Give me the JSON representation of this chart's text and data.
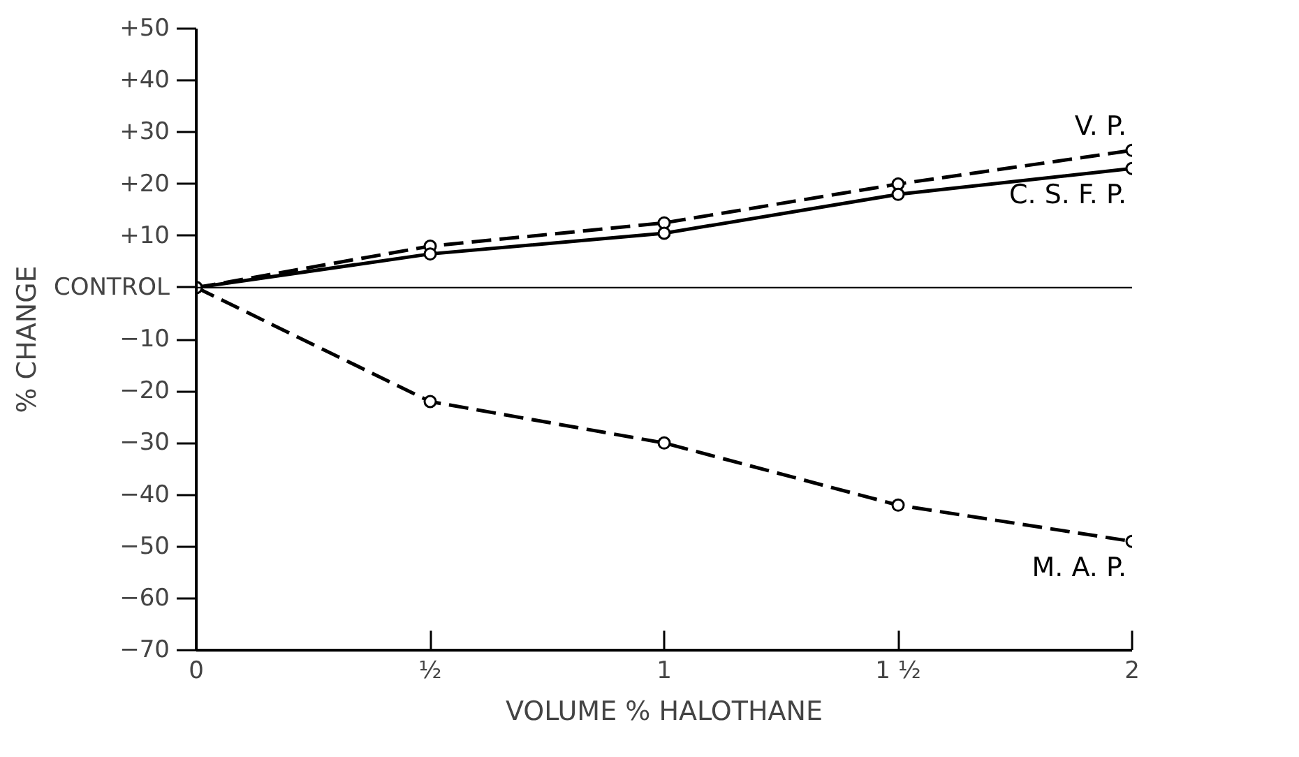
{
  "chart_data": {
    "type": "line",
    "xlabel": "VOLUME % HALOTHANE",
    "ylabel": "% CHANGE",
    "x": [
      0,
      0.5,
      1,
      1.5,
      2
    ],
    "series": [
      {
        "name": "V. P.",
        "color": "#000000",
        "line_style": "dashed",
        "values": [
          0,
          8,
          12.5,
          20,
          26.5
        ]
      },
      {
        "name": "C. S. F. P.",
        "color": "#000000",
        "line_style": "solid",
        "values": [
          0,
          6.5,
          10.5,
          18,
          23
        ]
      },
      {
        "name": "M. A. P.",
        "color": "#000000",
        "line_style": "dashed",
        "values": [
          0,
          -22,
          -30,
          -42,
          -49
        ]
      }
    ],
    "xlim": [
      0,
      2
    ],
    "ylim": [
      -70,
      50
    ],
    "xticks": [
      0,
      {
        "value": 0.5,
        "label": "½"
      },
      1,
      {
        "value": 1.5,
        "label": "1 ½"
      },
      2
    ],
    "yticks": [
      -70,
      -60,
      -50,
      -40,
      -30,
      -20,
      -10,
      {
        "value": 0,
        "label": "CONTROL"
      },
      {
        "value": 10,
        "label": "+10"
      },
      {
        "value": 20,
        "label": "+20"
      },
      {
        "value": 30,
        "label": "+30"
      },
      {
        "value": 40,
        "label": "+40"
      },
      {
        "value": 50,
        "label": "+50"
      }
    ],
    "ref_lines": [
      {
        "axis": "y",
        "value": 0,
        "color": "#000000"
      }
    ],
    "marker": "circle",
    "grid": false
  }
}
